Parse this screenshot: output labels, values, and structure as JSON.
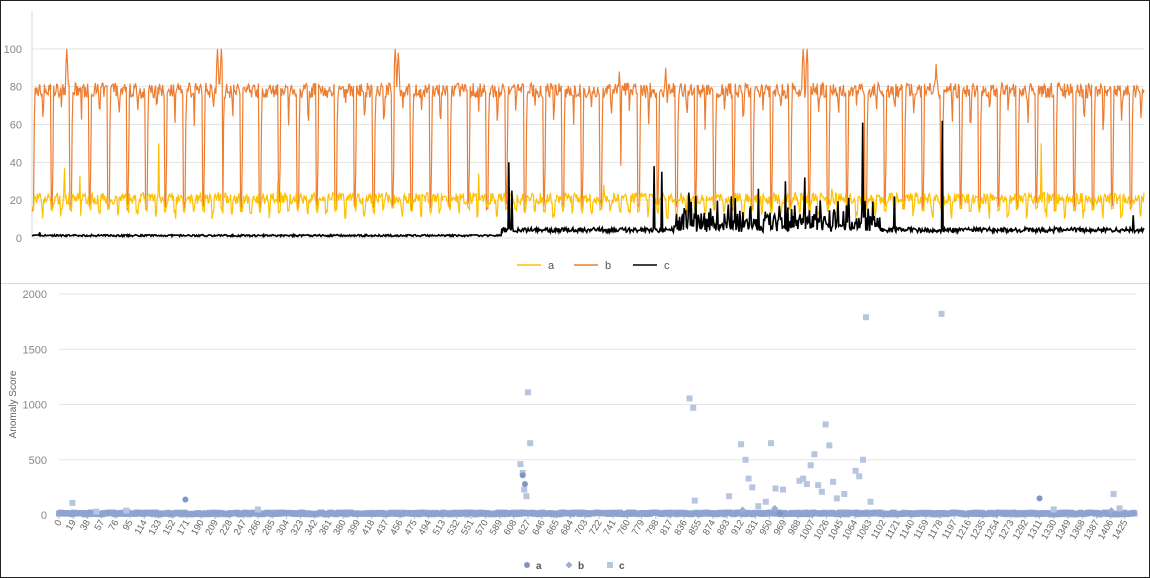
{
  "chart_data": [
    {
      "type": "line",
      "title": "",
      "xlabel": "",
      "ylabel": "",
      "ylim": [
        0,
        120
      ],
      "yticks": [
        0,
        20,
        40,
        60,
        80,
        100
      ],
      "x_count": 1440,
      "grid": true,
      "legend": "bottom-center",
      "series": [
        {
          "name": "a",
          "color": "#ffc000",
          "pattern": {
            "low": 13,
            "high": 24,
            "spikes": [
              [
                42,
                37
              ],
              [
                62,
                33
              ],
              [
                164,
                50
              ],
              [
                318,
                30
              ],
              [
                578,
                34
              ],
              [
                740,
                28
              ],
              [
                1035,
                26
              ],
              [
                1306,
                50
              ]
            ]
          }
        },
        {
          "name": "b",
          "color": "#ed7d31",
          "pattern": {
            "period": 24.5,
            "low": 14,
            "high": 80,
            "spikes": [
              [
                45,
                100
              ],
              [
                240,
                100
              ],
              [
                245,
                100
              ],
              [
                470,
                100
              ],
              [
                474,
                98
              ],
              [
                998,
                100
              ],
              [
                1003,
                100
              ],
              [
                1170,
                92
              ],
              [
                760,
                88
              ],
              [
                820,
                90
              ]
            ]
          }
        },
        {
          "name": "c",
          "color": "#000000",
          "pattern": {
            "baseline_before": 0.8,
            "baseline_after": 3,
            "spikes": [
              [
                10,
                3
              ],
              [
                617,
                40
              ],
              [
                621,
                25
              ],
              [
                805,
                38
              ],
              [
                815,
                35
              ],
              [
                850,
                24
              ],
              [
                905,
                22
              ],
              [
                940,
                26
              ],
              [
                975,
                30
              ],
              [
                1000,
                32
              ],
              [
                1075,
                61
              ],
              [
                1116,
                22
              ],
              [
                1178,
                62
              ],
              [
                1425,
                12
              ]
            ]
          }
        }
      ]
    },
    {
      "type": "scatter",
      "title": "",
      "xlabel": "",
      "ylabel": "Anomaly Score",
      "ylim": [
        0,
        2000
      ],
      "yticks": [
        0,
        500,
        1000,
        1500,
        2000
      ],
      "x_tick_labels": [
        "0",
        "19",
        "38",
        "57",
        "76",
        "95",
        "114",
        "133",
        "152",
        "171",
        "190",
        "209",
        "228",
        "247",
        "266",
        "285",
        "304",
        "323",
        "342",
        "361",
        "380",
        "399",
        "418",
        "437",
        "456",
        "475",
        "494",
        "513",
        "532",
        "551",
        "570",
        "589",
        "608",
        "627",
        "646",
        "665",
        "684",
        "703",
        "722",
        "741",
        "760",
        "779",
        "798",
        "817",
        "836",
        "855",
        "874",
        "893",
        "912",
        "931",
        "950",
        "969",
        "988",
        "1007",
        "1026",
        "1045",
        "1064",
        "1083",
        "1102",
        "1121",
        "1140",
        "1159",
        "1178",
        "1197",
        "1216",
        "1235",
        "1254",
        "1273",
        "1292",
        "1311",
        "1330",
        "1349",
        "1368",
        "1387",
        "1406",
        "1425"
      ],
      "grid": true,
      "legend": "bottom-center",
      "series": [
        {
          "name": "a",
          "marker": "circle",
          "color": "#7f96c8",
          "points": [
            [
              169,
              140
            ],
            [
              620,
              360
            ],
            [
              623,
              280
            ],
            [
              1311,
              150
            ],
            [
              964,
              15
            ]
          ]
        },
        {
          "name": "b",
          "marker": "diamond",
          "color": "#9daed6",
          "points": [
            [
              914,
              45
            ],
            [
              957,
              60
            ],
            [
              1407,
              40
            ]
          ]
        },
        {
          "name": "c",
          "marker": "square",
          "color": "#b7c5e1",
          "points": [
            [
              18,
              110
            ],
            [
              50,
              30
            ],
            [
              90,
              40
            ],
            [
              266,
              50
            ],
            [
              617,
              460
            ],
            [
              620,
              380
            ],
            [
              622,
              230
            ],
            [
              625,
              170
            ],
            [
              627,
              1110
            ],
            [
              630,
              650
            ],
            [
              843,
              1055
            ],
            [
              848,
              970
            ],
            [
              850,
              130
            ],
            [
              896,
              170
            ],
            [
              912,
              640
            ],
            [
              918,
              500
            ],
            [
              922,
              330
            ],
            [
              927,
              250
            ],
            [
              935,
              80
            ],
            [
              945,
              120
            ],
            [
              952,
              650
            ],
            [
              958,
              240
            ],
            [
              968,
              230
            ],
            [
              990,
              310
            ],
            [
              995,
              330
            ],
            [
              1000,
              280
            ],
            [
              1005,
              450
            ],
            [
              1010,
              550
            ],
            [
              1015,
              270
            ],
            [
              1020,
              210
            ],
            [
              1025,
              820
            ],
            [
              1030,
              630
            ],
            [
              1035,
              300
            ],
            [
              1040,
              150
            ],
            [
              1050,
              190
            ],
            [
              1065,
              400
            ],
            [
              1070,
              350
            ],
            [
              1075,
              500
            ],
            [
              1079,
              1790
            ],
            [
              1085,
              120
            ],
            [
              1180,
              1820
            ],
            [
              1330,
              50
            ],
            [
              1410,
              190
            ],
            [
              1418,
              60
            ]
          ]
        }
      ]
    }
  ]
}
